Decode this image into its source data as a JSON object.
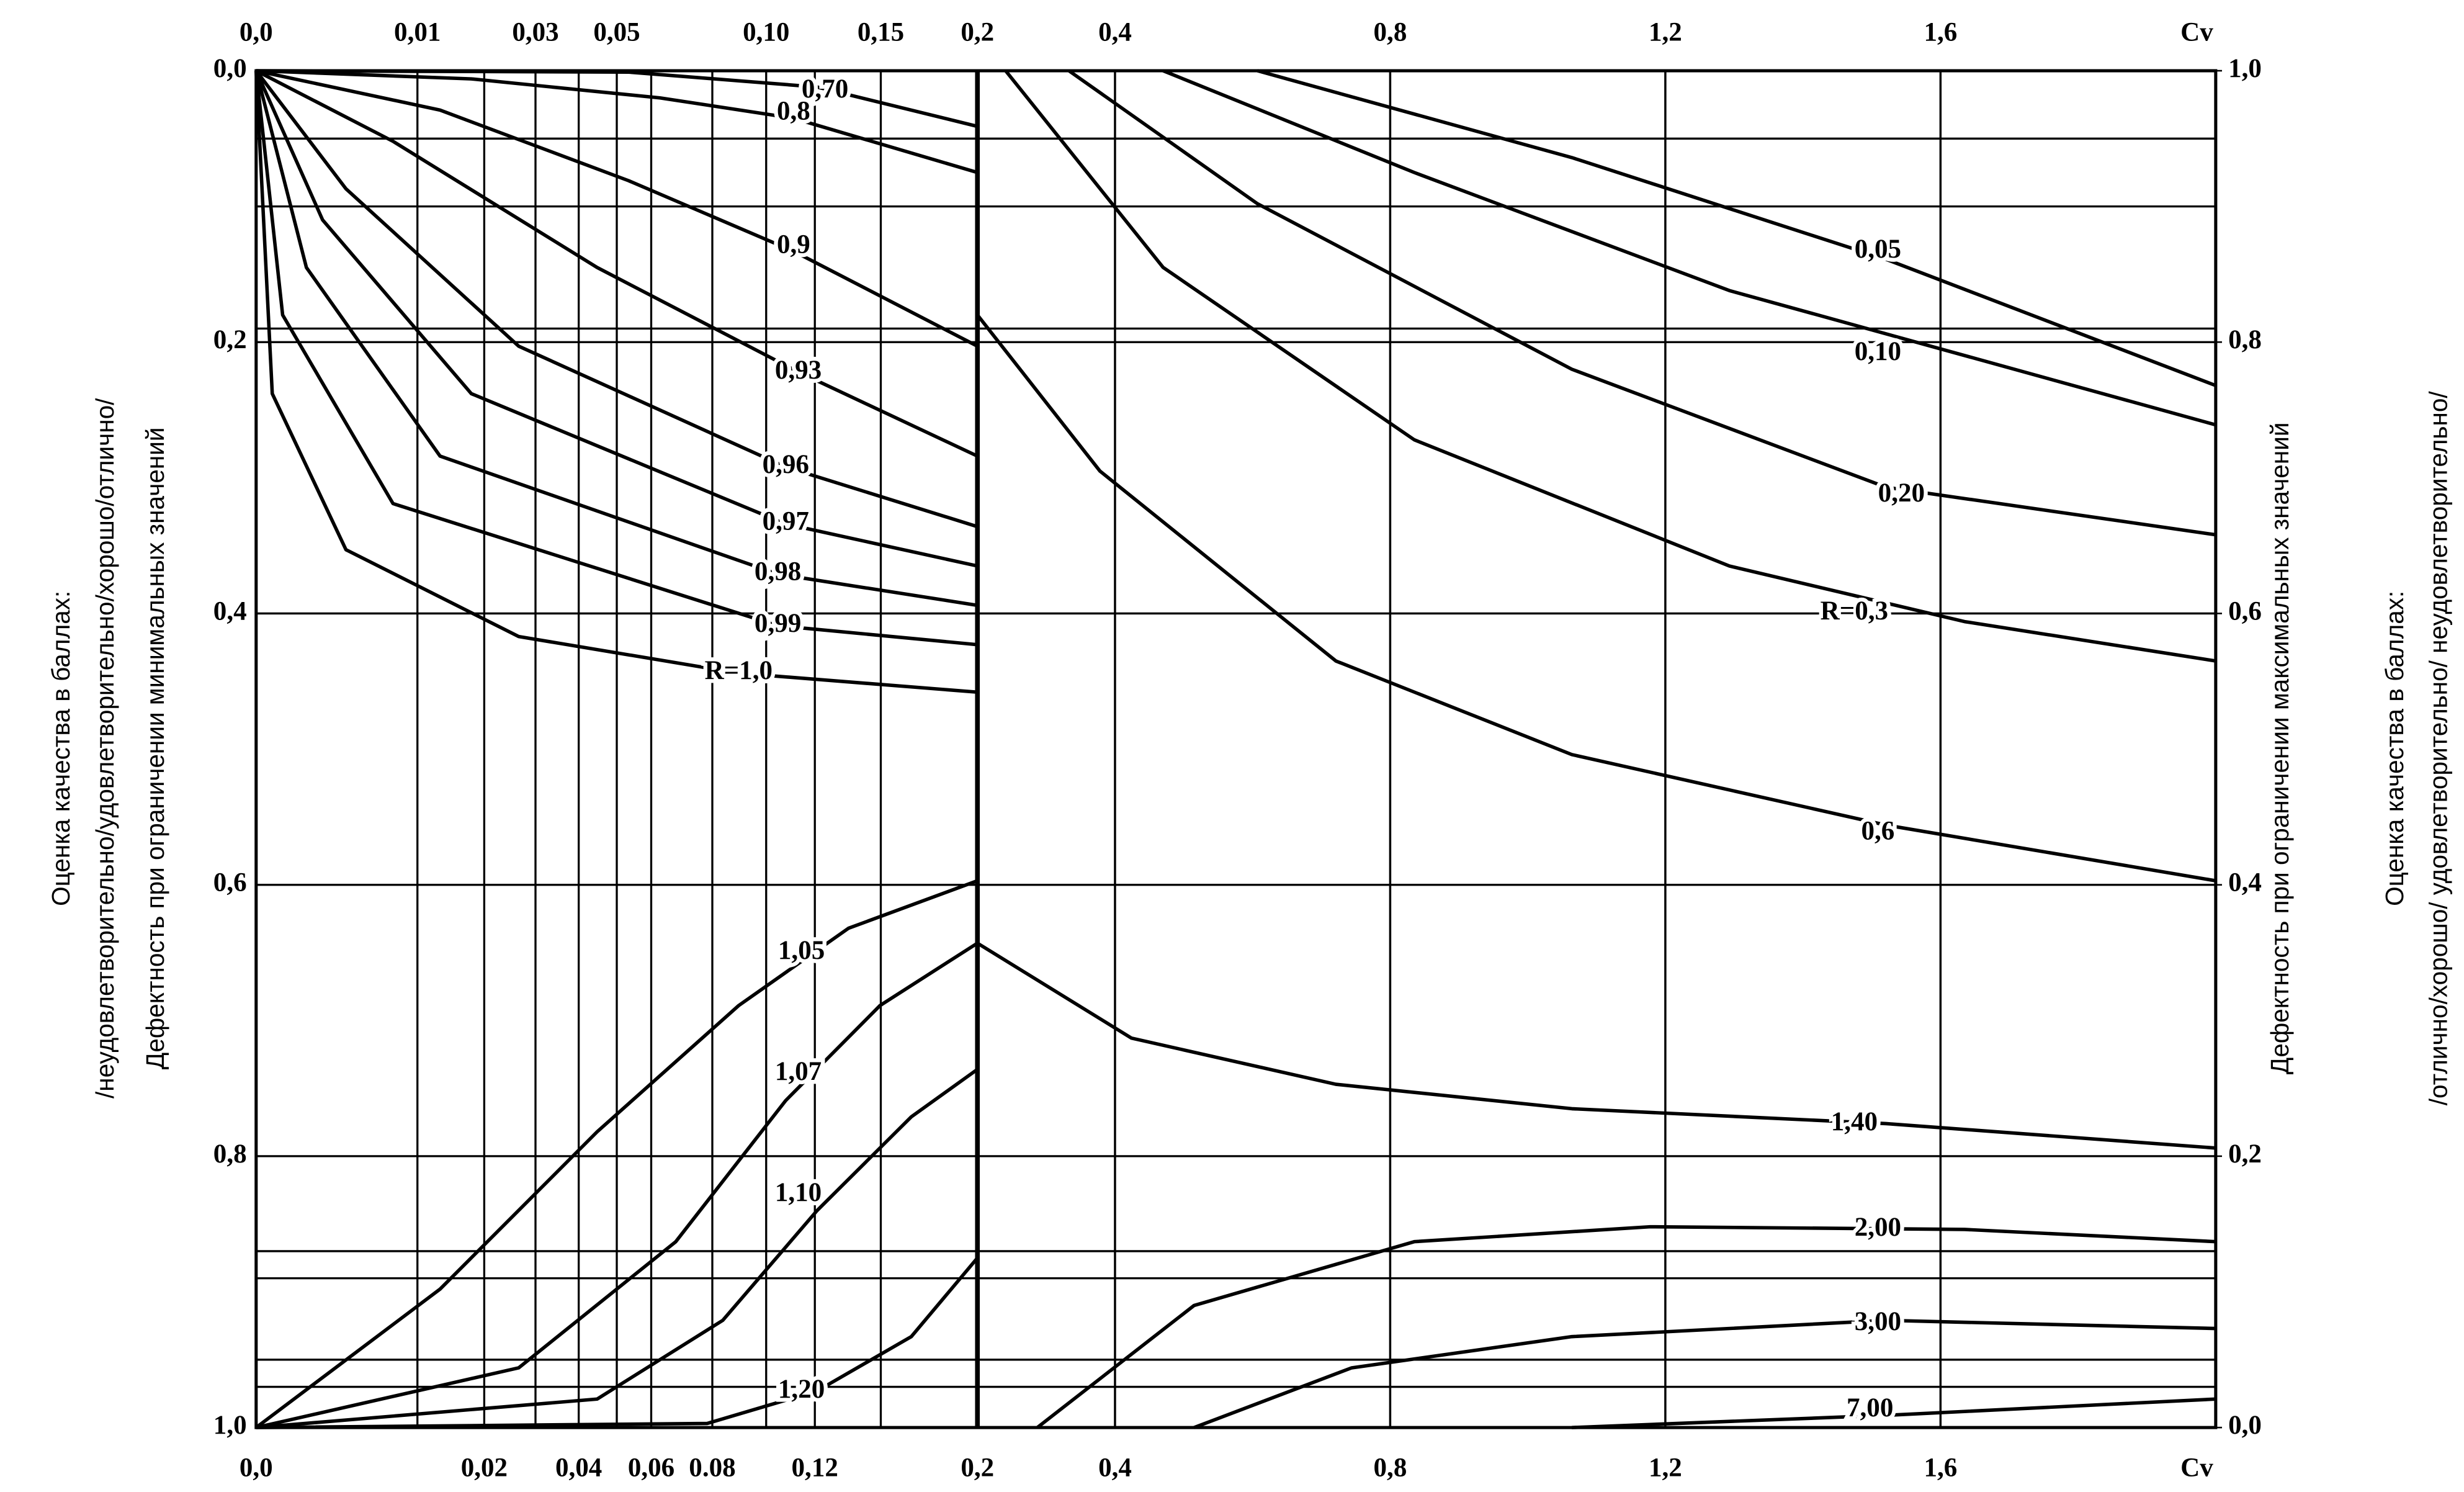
{
  "chart_data": {
    "type": "line",
    "color": "#000000",
    "grid": true,
    "xlim": [
      0,
      2.0
    ],
    "x2lim": [
      0,
      2.0
    ],
    "x_break": 0.2,
    "xlabel": "Cv",
    "x2label": "Cv",
    "xticks": [
      {
        "value": 0,
        "label": "0,0"
      },
      {
        "value": 0.02,
        "label": "0,02"
      },
      {
        "value": 0.04,
        "label": "0,04"
      },
      {
        "value": 0.06,
        "label": "0,06"
      },
      {
        "value": 0.08,
        "label": "0.08"
      },
      {
        "value": 0.12,
        "label": "0,12"
      },
      {
        "value": 0.2,
        "label": "0,2"
      },
      {
        "value": 0.4,
        "label": "0,4"
      },
      {
        "value": 0.8,
        "label": "0,8"
      },
      {
        "value": 1.2,
        "label": "1,2"
      },
      {
        "value": 1.6,
        "label": "1,6"
      }
    ],
    "x2ticks": [
      {
        "value": 0,
        "label": "0,0"
      },
      {
        "value": 0.01,
        "label": "0,01"
      },
      {
        "value": 0.03,
        "label": "0,03"
      },
      {
        "value": 0.05,
        "label": "0,05"
      },
      {
        "value": 0.1,
        "label": "0,10"
      },
      {
        "value": 0.15,
        "label": "0,15"
      },
      {
        "value": 0.2,
        "label": "0,2"
      },
      {
        "value": 0.4,
        "label": "0,4"
      },
      {
        "value": 0.8,
        "label": "0,8"
      },
      {
        "value": 1.2,
        "label": "1,2"
      },
      {
        "value": 1.6,
        "label": "1,6"
      }
    ],
    "ylim": [
      1.0,
      0.0
    ],
    "yticks": [
      {
        "value": 0,
        "label": "0,0"
      },
      {
        "value": 0.2,
        "label": "0,2"
      },
      {
        "value": 0.4,
        "label": "0,4"
      },
      {
        "value": 0.6,
        "label": "0,6"
      },
      {
        "value": 0.8,
        "label": "0,8"
      },
      {
        "value": 1.0,
        "label": "1,0"
      }
    ],
    "y2lim": [
      0.0,
      1.0
    ],
    "y2ticks": [
      {
        "value": 1.0,
        "label": "1,0"
      },
      {
        "value": 0.8,
        "label": "0,8"
      },
      {
        "value": 0.6,
        "label": "0,6"
      },
      {
        "value": 0.4,
        "label": "0,4"
      },
      {
        "value": 0.2,
        "label": "0,2"
      },
      {
        "value": 0,
        "label": "0,0"
      }
    ],
    "reference_lines": [
      0.05,
      0.1,
      0.19,
      0.87,
      0.89,
      0.95,
      0.97
    ],
    "ylabel": "Дефектность при ограничении минимальных значений",
    "y_quality_label": [
      "Оценка качества в баллах:",
      "/неудовлетворительно/удовлетворительно/хорошо/отлично/"
    ],
    "y2label": "Дефектность при ограничении максимальных значений",
    "y2_quality_label": [
      "Оценка качества в баллах:",
      "/отлично/хорошо/ удовлетворительно/ неудовлетворительно/"
    ],
    "series": [
      {
        "name": "0,70",
        "x": [
          0,
          0.0533,
          0.121,
          0.2
        ],
        "values": [
          0,
          0.001,
          0.012,
          0.041
        ]
      },
      {
        "name": "0,8",
        "x": [
          0,
          0.0178,
          0.0627,
          0.111,
          0.2
        ],
        "values": [
          0,
          0.006,
          0.02,
          0.035,
          0.075
        ]
      },
      {
        "name": "0,9",
        "x": [
          0,
          0.013,
          0.0533,
          0.111,
          0.2
        ],
        "values": [
          0,
          0.029,
          0.081,
          0.133,
          0.203
        ]
      },
      {
        "name": "0,93",
        "x": [
          0,
          0.0072,
          0.0447,
          0.113,
          0.2
        ],
        "values": [
          0,
          0.052,
          0.145,
          0.222,
          0.284
        ]
      },
      {
        "name": "0,96",
        "x": [
          0,
          0.0031,
          0.0265,
          0.1078,
          0.2
        ],
        "values": [
          0,
          0.087,
          0.203,
          0.292,
          0.336
        ]
      },
      {
        "name": "0,97",
        "x": [
          0,
          0.0017,
          0.0178,
          0.1078,
          0.2
        ],
        "values": [
          0,
          0.11,
          0.238,
          0.334,
          0.365
        ]
      },
      {
        "name": "0,98",
        "x": [
          0,
          0.00097,
          0.013,
          0.1046,
          0.2
        ],
        "values": [
          0,
          0.145,
          0.284,
          0.371,
          0.394
        ]
      },
      {
        "name": "0,99",
        "x": [
          0,
          0.00027,
          0.0072,
          0.1046,
          0.2
        ],
        "values": [
          0,
          0.18,
          0.319,
          0.409,
          0.423
        ]
      },
      {
        "name": "R=1,0",
        "x": [
          0,
          0.0001,
          0.0031,
          0.0265,
          0.0895,
          0.2
        ],
        "values": [
          0,
          0.238,
          0.353,
          0.417,
          0.444,
          0.458
        ]
      },
      {
        "name": "1,05",
        "x": [
          0,
          0.013,
          0.0447,
          0.0895,
          0.1349,
          0.2
        ],
        "values": [
          1,
          0.898,
          0.782,
          0.689,
          0.632,
          0.597
        ]
      },
      {
        "name": "1,07",
        "x": [
          0,
          0.0265,
          0.0677,
          0.1078,
          0.1496,
          0.2
        ],
        "values": [
          1,
          0.956,
          0.863,
          0.759,
          0.689,
          0.643
        ]
      },
      {
        "name": "1,10",
        "x": [
          0,
          0.0447,
          0.0837,
          0.121,
          0.165,
          0.2
        ],
        "values": [
          1,
          0.979,
          0.921,
          0.84,
          0.771,
          0.736
        ]
      },
      {
        "name": "1,20",
        "x": [
          0,
          0.0782,
          0.121,
          0.165,
          0.2
        ],
        "values": [
          1,
          0.997,
          0.973,
          0.933,
          0.875
        ]
      },
      {
        "name": "0,05",
        "x": [
          0.607,
          1.064,
          1.521,
          2.0
        ],
        "values": [
          0,
          0.064,
          0.139,
          0.232
        ]
      },
      {
        "name": "0,10",
        "x": [
          0.47,
          0.835,
          1.293,
          2.0
        ],
        "values": [
          0,
          0.075,
          0.162,
          0.261
        ]
      },
      {
        "name": "0,20",
        "x": [
          0.333,
          0.607,
          1.064,
          1.521,
          2.0
        ],
        "values": [
          0,
          0.098,
          0.22,
          0.307,
          0.342
        ]
      },
      {
        "name": "R=0,3",
        "x": [
          0.241,
          0.47,
          0.835,
          1.293,
          1.635,
          2.0
        ],
        "values": [
          0,
          0.145,
          0.272,
          0.365,
          0.406,
          0.435
        ]
      },
      {
        "name": "0,6",
        "x": [
          0.2,
          0.378,
          0.721,
          1.064,
          1.521,
          2.0
        ],
        "values": [
          0.18,
          0.295,
          0.435,
          0.504,
          0.556,
          0.597
        ]
      },
      {
        "name": "1,40",
        "x": [
          0.2,
          0.424,
          0.721,
          1.064,
          1.521,
          2.0
        ],
        "values": [
          0.643,
          0.713,
          0.747,
          0.765,
          0.776,
          0.794
        ]
      },
      {
        "name": "2,00",
        "x": [
          0.287,
          0.515,
          0.835,
          1.178,
          1.635,
          2.0
        ],
        "values": [
          1,
          0.91,
          0.863,
          0.852,
          0.854,
          0.863
        ]
      },
      {
        "name": "3,00",
        "x": [
          0.515,
          0.744,
          1.064,
          1.521,
          2.0
        ],
        "values": [
          1,
          0.956,
          0.933,
          0.921,
          0.927
        ]
      },
      {
        "name": "7,00",
        "x": [
          1.064,
          1.521,
          2.0
        ],
        "values": [
          1,
          0.991,
          0.979
        ]
      }
    ]
  }
}
